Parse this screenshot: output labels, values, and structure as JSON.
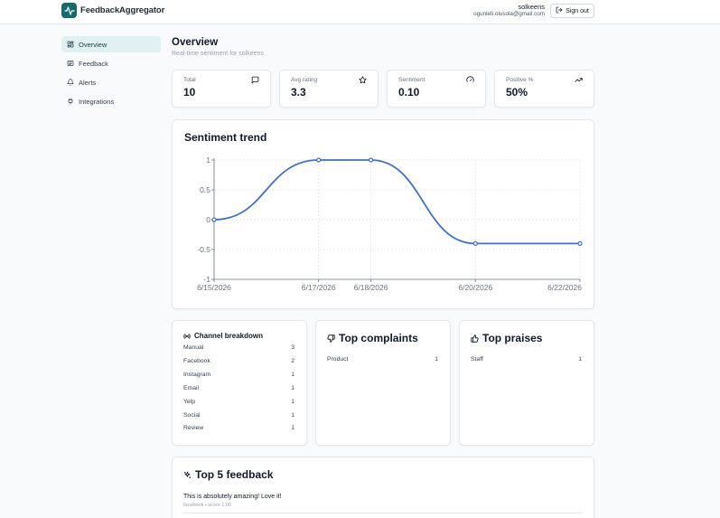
{
  "app": {
    "name": "FeedbackAggregator"
  },
  "user": {
    "name": "solkeens",
    "email": "ogunleti.olusola@gmail.com"
  },
  "header": {
    "signout_label": "Sign out"
  },
  "sidebar": {
    "items": [
      {
        "label": "Overview",
        "icon": "dashboard-icon",
        "active": true
      },
      {
        "label": "Feedback",
        "icon": "list-icon",
        "active": false
      },
      {
        "label": "Alerts",
        "icon": "bell-icon",
        "active": false
      },
      {
        "label": "Integrations",
        "icon": "plug-icon",
        "active": false
      }
    ]
  },
  "page": {
    "title": "Overview",
    "subtitle": "Real-time sentiment for solkeens"
  },
  "stats": [
    {
      "label": "Total",
      "value": "10",
      "icon": "message-icon"
    },
    {
      "label": "Avg rating",
      "value": "3.3",
      "icon": "star-icon"
    },
    {
      "label": "Sentiment",
      "value": "0.10",
      "icon": "gauge-icon"
    },
    {
      "label": "Positive %",
      "value": "50%",
      "icon": "trending-up-icon"
    }
  ],
  "trend": {
    "title": "Sentiment trend"
  },
  "chart_data": {
    "type": "line",
    "title": "Sentiment trend",
    "x": [
      "6/15/2026",
      "6/17/2026",
      "6/18/2026",
      "6/20/2026",
      "6/22/2026"
    ],
    "values": [
      0,
      1,
      1,
      -0.4,
      -0.4
    ],
    "yticks": [
      "1",
      "0.5",
      "0",
      "-0.5",
      "-1"
    ],
    "ylim": [
      -1,
      1
    ],
    "grid": true,
    "color": "#3b6fd6"
  },
  "channels": {
    "title": "Channel breakdown",
    "rows": [
      {
        "name": "Manual",
        "count": "3"
      },
      {
        "name": "Facebook",
        "count": "2"
      },
      {
        "name": "Instagram",
        "count": "1"
      },
      {
        "name": "Email",
        "count": "1"
      },
      {
        "name": "Yelp",
        "count": "1"
      },
      {
        "name": "Social",
        "count": "1"
      },
      {
        "name": "Review",
        "count": "1"
      }
    ]
  },
  "complaints": {
    "title": "Top complaints",
    "rows": [
      {
        "name": "Product",
        "count": "1"
      }
    ]
  },
  "praises": {
    "title": "Top praises",
    "rows": [
      {
        "name": "Staff",
        "count": "1"
      }
    ]
  },
  "top_feedback": {
    "title": "Top 5 feedback",
    "items": [
      {
        "text": "This is absolutely amazing! Love it!",
        "meta": "facebook • score 1.00"
      }
    ]
  },
  "colors": {
    "accent": "#146b6b",
    "active_bg": "#dff1f0",
    "line": "#3b6fd6"
  }
}
